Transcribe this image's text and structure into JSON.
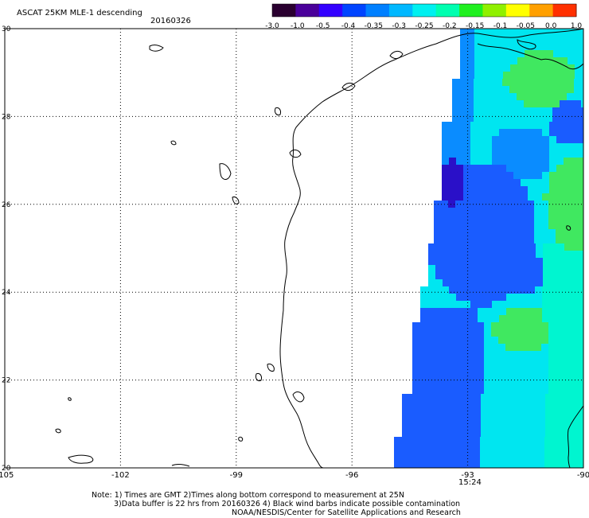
{
  "header": {
    "title": "ASCAT 25KM MLE-1 descending",
    "date": "20160326"
  },
  "colorbar": {
    "ticks": [
      "-3.0",
      "-1.0",
      "-0.5",
      "-0.4",
      "-0.35",
      "-0.3",
      "-0.25",
      "-0.2",
      "-0.15",
      "-0.1",
      "-0.05",
      "0.0",
      "1.0"
    ],
    "colors": [
      "#2a0030",
      "#4a009a",
      "#3300ff",
      "#0044ff",
      "#0080ff",
      "#00b8ff",
      "#00f0f0",
      "#00ffb0",
      "#20f020",
      "#90f000",
      "#ffff00",
      "#ffa000",
      "#ff3000"
    ]
  },
  "axes": {
    "lon_ticks": [
      "-105",
      "-102",
      "-99",
      "-96",
      "-93",
      "-90"
    ],
    "lat_ticks": [
      "30",
      "28",
      "26",
      "24",
      "22",
      "20"
    ],
    "lon_values": [
      -105,
      -102,
      -99,
      -96,
      -93,
      -90
    ],
    "lat_values": [
      30,
      28,
      26,
      24,
      22,
      20
    ],
    "time_label": "15:24",
    "time_color": "#cc2200"
  },
  "notes": {
    "line1": "Note: 1) Times are GMT 2)Times along bottom correspond to measurement at 25N",
    "line2": "3)Data buffer is 22 hrs from 20160326 4) Black wind barbs indicate possible contamination",
    "line3": "NOAA/NESDIS/Center for Satellite Applications and Research"
  },
  "swath_colors": {
    "blue": "#1a5cff",
    "mid_blue": "#0a8cff",
    "cyan": "#00e6f0",
    "aqua": "#00f5d0",
    "green": "#40e860",
    "deep": "#2a10c8"
  }
}
